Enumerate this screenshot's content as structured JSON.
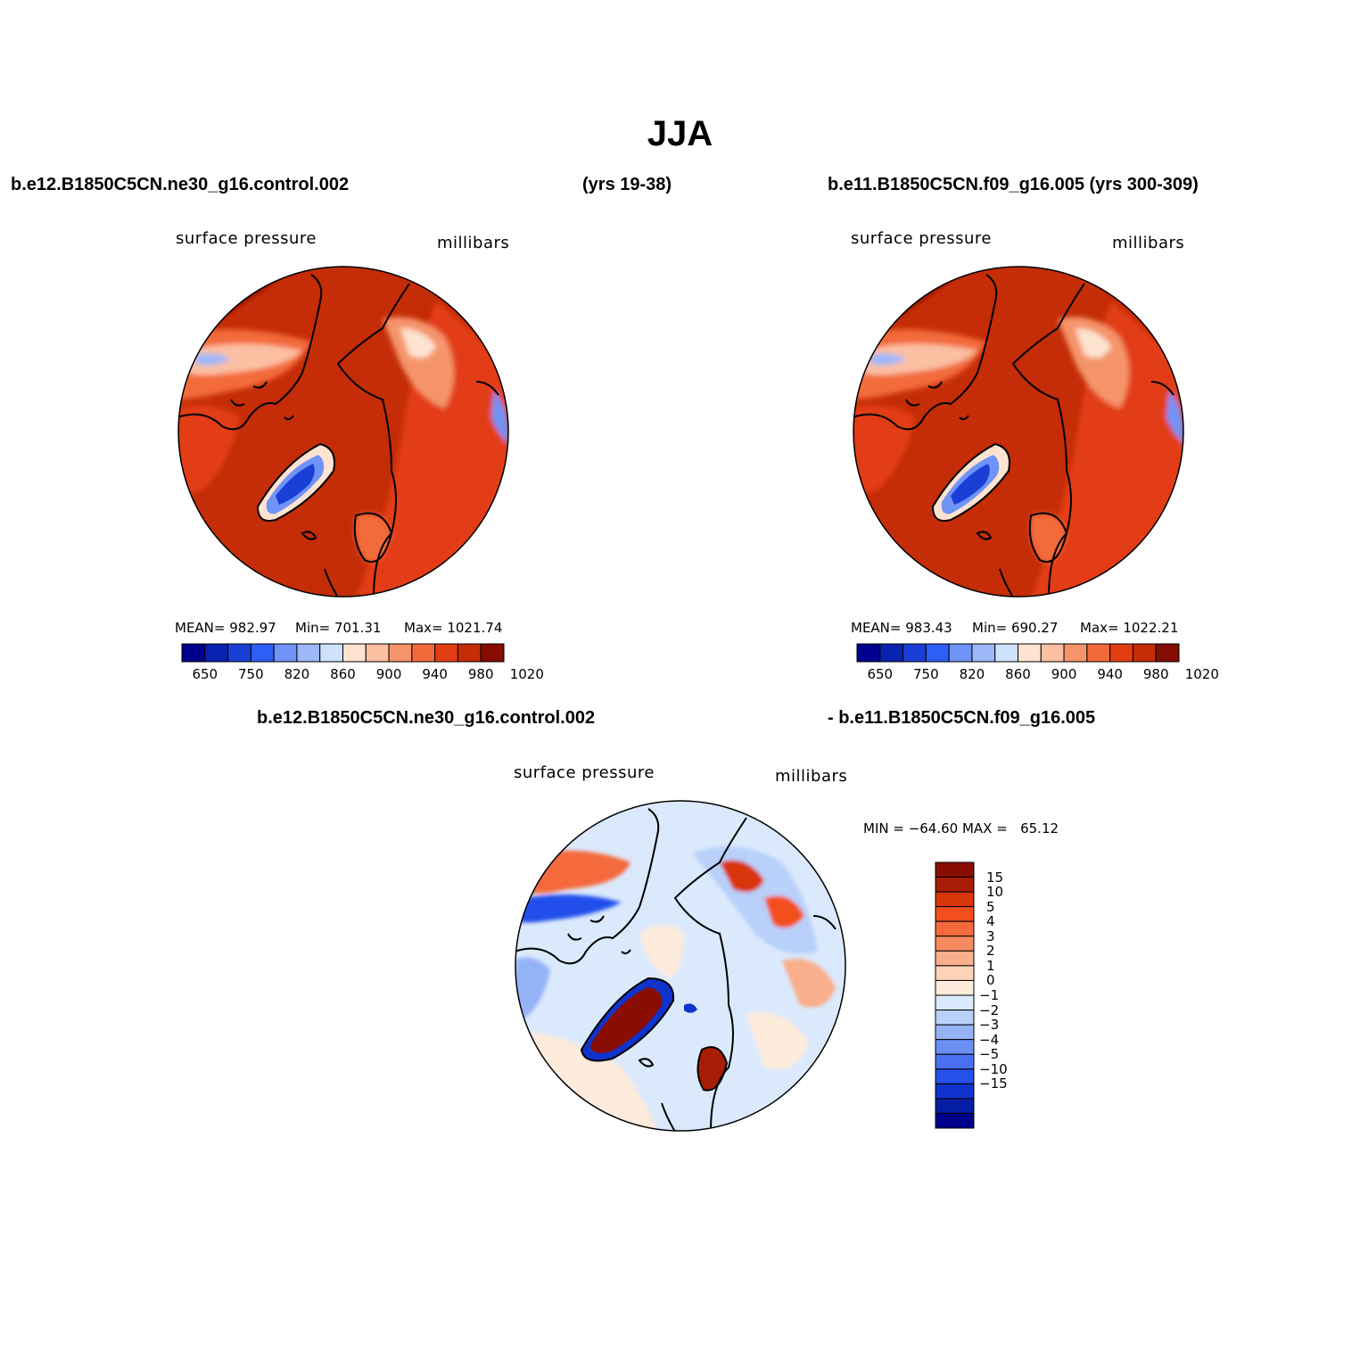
{
  "figure": {
    "title": "JJA"
  },
  "panels": [
    {
      "id": "case1",
      "header_left": "b.e12.B1850C5CN.ne30_g16.control.002",
      "header_right": "(yrs 19-38)",
      "field": "surface pressure",
      "units": "millibars",
      "stats": {
        "mean": "MEAN= 982.97",
        "min": "Min= 701.31",
        "max": "Max= 1021.74"
      },
      "colorbar": {
        "colors": [
          "#00008c",
          "#0a22b0",
          "#1a3fd6",
          "#2d5ef5",
          "#6f93f7",
          "#9db8f8",
          "#cfe2fb",
          "#fde3d0",
          "#fbbfa2",
          "#f5946b",
          "#f36a3a",
          "#e23e12",
          "#c42d07",
          "#850d02"
        ],
        "labels": [
          "650",
          "750",
          "820",
          "860",
          "900",
          "940",
          "980",
          "1020"
        ]
      }
    },
    {
      "id": "case2",
      "header_left": "b.e11.B1850C5CN.f09_g16.005 (yrs 300-309)",
      "field": "surface pressure",
      "units": "millibars",
      "stats": {
        "mean": "MEAN= 983.43",
        "min": "Min= 690.27",
        "max": "Max= 1022.21"
      },
      "colorbar": {
        "colors": [
          "#00008c",
          "#0a22b0",
          "#1a3fd6",
          "#2d5ef5",
          "#6f93f7",
          "#9db8f8",
          "#cfe2fb",
          "#fde3d0",
          "#fbbfa2",
          "#f5946b",
          "#f36a3a",
          "#e23e12",
          "#c42d07",
          "#850d02"
        ],
        "labels": [
          "650",
          "750",
          "820",
          "860",
          "900",
          "940",
          "980",
          "1020"
        ]
      }
    },
    {
      "id": "difference",
      "header_left": "b.e12.B1850C5CN.ne30_g16.control.002",
      "header_right": "- b.e11.B1850C5CN.f09_g16.005",
      "field": "surface pressure",
      "units": "millibars",
      "stats": {
        "minmax": "MIN = −64.60 MAX =   65.12"
      },
      "colorbar": {
        "colors_top_to_bottom": [
          "#8a0d02",
          "#a81d05",
          "#d9360b",
          "#f34f1c",
          "#f56a3c",
          "#f78b60",
          "#f9ae8c",
          "#fcd2b8",
          "#fdebdc",
          "#dbe9fc",
          "#b8d0fa",
          "#94b3f7",
          "#6b90f5",
          "#4a6ff2",
          "#2450eb",
          "#0f33cc",
          "#061ea5",
          "#00008a"
        ],
        "labels_top_to_bottom": [
          "15",
          "10",
          "5",
          "4",
          "3",
          "2",
          "1",
          "0",
          "−1",
          "−2",
          "−3",
          "−4",
          "−5",
          "−10",
          "−15"
        ]
      }
    }
  ]
}
